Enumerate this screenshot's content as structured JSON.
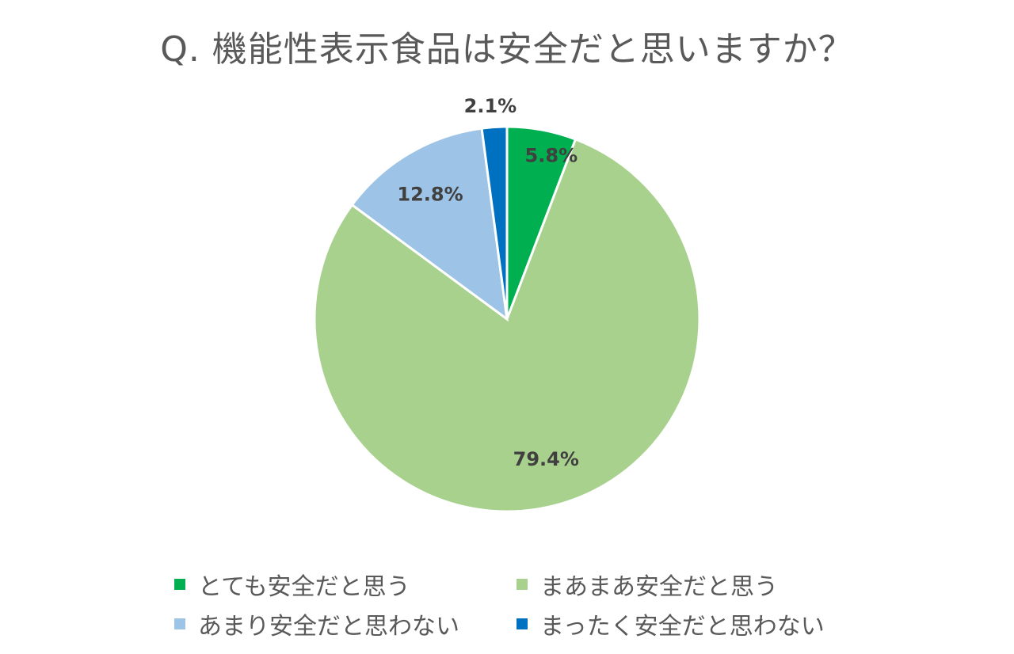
{
  "chart_data": {
    "type": "pie",
    "title": "Q. 機能性表示食品は安全だと思いますか？",
    "categories": [
      "とても安全だと思う",
      "まあまあ安全だと思う",
      "あまり安全だと思わない",
      "まったく安全だと思わない"
    ],
    "values": [
      5.8,
      79.4,
      12.8,
      2.1
    ],
    "value_labels": [
      "5.8%",
      "79.4%",
      "12.8%",
      "2.1%"
    ],
    "colors": [
      "#00b050",
      "#a9d18e",
      "#9dc3e6",
      "#0070c0"
    ],
    "legend_position": "bottom",
    "start_angle": "12 o'clock",
    "direction": "clockwise"
  }
}
